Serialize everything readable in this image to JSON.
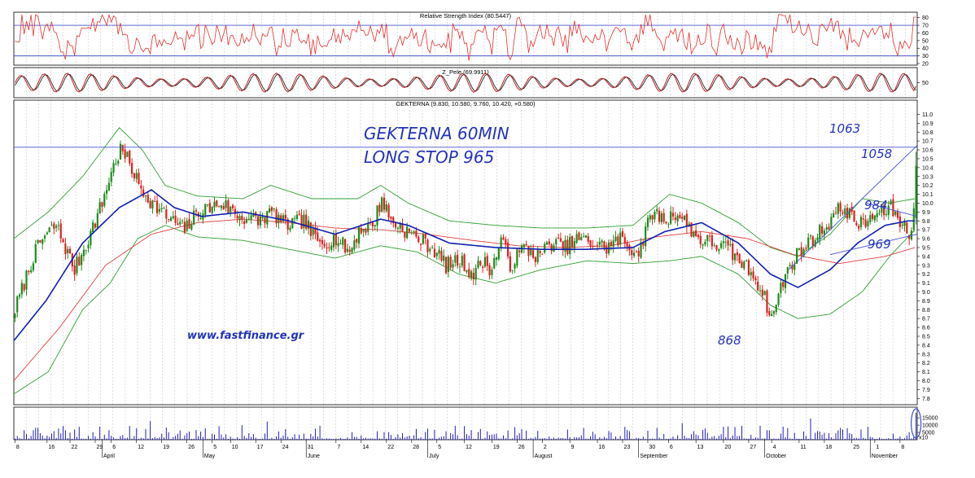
{
  "chart_data": [
    {
      "type": "line",
      "panel": "rsi",
      "title": "Relative Strength Index (80.5447)",
      "y_ticks": [
        "80",
        "70",
        "60",
        "50",
        "40",
        "30",
        "20"
      ],
      "ylim": [
        20,
        85
      ],
      "levels": [
        70,
        30
      ],
      "colors": {
        "line": "#e83030",
        "level": "#4455cc"
      }
    },
    {
      "type": "line",
      "panel": "oscillator",
      "title": "Z_Pele (69.9911)",
      "y_ticks": [
        "50"
      ],
      "ylim": [
        0,
        100
      ],
      "colors": {
        "line": "#c02020",
        "signal": "#222222"
      }
    },
    {
      "type": "candlestick",
      "panel": "price",
      "title": "GEKTERNA (9.830, 10.580, 9.760, 10.420, +0.580)",
      "y_ticks": [
        "11.0",
        "10.9",
        "10.8",
        "10.7",
        "10.6",
        "10.5",
        "10.4",
        "10.3",
        "10.2",
        "10.1",
        "10.0",
        "9.9",
        "9.8",
        "9.7",
        "9.6",
        "9.5",
        "9.4",
        "9.3",
        "9.2",
        "9.1",
        "9.0",
        "8.9",
        "8.8",
        "8.7",
        "8.6",
        "8.5",
        "8.4",
        "8.3",
        "8.2",
        "8.1",
        "8.0",
        "7.9",
        "7.8"
      ],
      "ylim": [
        7.72,
        11.05
      ],
      "series": [
        {
          "name": "",
          "role": "close",
          "points": [
            [
              0,
              8.8
            ],
            [
              8,
              9.4
            ],
            [
              12,
              9.6
            ],
            [
              18,
              9.75
            ],
            [
              22,
              9.5
            ],
            [
              26,
              9.25
            ],
            [
              32,
              9.6
            ],
            [
              38,
              10.0
            ],
            [
              42,
              10.35
            ],
            [
              46,
              10.6
            ],
            [
              50,
              10.45
            ],
            [
              54,
              10.2
            ],
            [
              60,
              10.0
            ],
            [
              66,
              9.85
            ],
            [
              74,
              9.7
            ],
            [
              80,
              9.9
            ],
            [
              90,
              10.0
            ],
            [
              98,
              9.85
            ],
            [
              106,
              9.8
            ],
            [
              112,
              9.9
            ],
            [
              118,
              9.75
            ],
            [
              126,
              9.8
            ],
            [
              132,
              9.55
            ],
            [
              140,
              9.6
            ],
            [
              146,
              9.45
            ],
            [
              150,
              9.7
            ],
            [
              156,
              9.75
            ],
            [
              160,
              10.05
            ],
            [
              164,
              9.8
            ],
            [
              170,
              9.7
            ],
            [
              176,
              9.6
            ],
            [
              182,
              9.5
            ],
            [
              188,
              9.3
            ],
            [
              194,
              9.35
            ],
            [
              200,
              9.2
            ],
            [
              204,
              9.35
            ],
            [
              208,
              9.25
            ],
            [
              212,
              9.6
            ],
            [
              216,
              9.3
            ],
            [
              222,
              9.5
            ],
            [
              228,
              9.4
            ],
            [
              234,
              9.55
            ],
            [
              240,
              9.5
            ],
            [
              246,
              9.6
            ],
            [
              252,
              9.55
            ],
            [
              258,
              9.5
            ],
            [
              264,
              9.6
            ],
            [
              268,
              9.5
            ],
            [
              272,
              9.45
            ],
            [
              278,
              9.9
            ],
            [
              284,
              9.8
            ],
            [
              288,
              9.9
            ],
            [
              292,
              9.8
            ],
            [
              298,
              9.6
            ],
            [
              304,
              9.55
            ],
            [
              310,
              9.5
            ],
            [
              316,
              9.35
            ],
            [
              322,
              9.2
            ],
            [
              326,
              9.0
            ],
            [
              330,
              8.7
            ],
            [
              334,
              9.05
            ],
            [
              338,
              9.3
            ],
            [
              342,
              9.45
            ],
            [
              348,
              9.6
            ],
            [
              354,
              9.75
            ],
            [
              358,
              9.9
            ],
            [
              362,
              9.95
            ],
            [
              366,
              9.8
            ],
            [
              370,
              9.75
            ],
            [
              374,
              9.85
            ],
            [
              378,
              9.9
            ],
            [
              382,
              9.95
            ],
            [
              386,
              9.8
            ],
            [
              390,
              9.65
            ],
            [
              392,
              9.9
            ],
            [
              393,
              10.42
            ]
          ]
        },
        {
          "name": "",
          "role": "ma_fast",
          "points": [
            [
              0,
              8.45
            ],
            [
              14,
              8.9
            ],
            [
              30,
              9.55
            ],
            [
              46,
              9.95
            ],
            [
              60,
              10.15
            ],
            [
              70,
              9.95
            ],
            [
              82,
              9.85
            ],
            [
              100,
              9.9
            ],
            [
              120,
              9.8
            ],
            [
              140,
              9.65
            ],
            [
              160,
              9.82
            ],
            [
              172,
              9.75
            ],
            [
              190,
              9.55
            ],
            [
              210,
              9.5
            ],
            [
              230,
              9.48
            ],
            [
              250,
              9.48
            ],
            [
              270,
              9.5
            ],
            [
              284,
              9.68
            ],
            [
              300,
              9.78
            ],
            [
              316,
              9.55
            ],
            [
              330,
              9.2
            ],
            [
              342,
              9.05
            ],
            [
              356,
              9.25
            ],
            [
              368,
              9.55
            ],
            [
              380,
              9.75
            ],
            [
              390,
              9.8
            ],
            [
              393,
              9.8
            ]
          ]
        },
        {
          "name": "",
          "role": "ma_slow",
          "points": [
            [
              0,
              8.0
            ],
            [
              20,
              8.6
            ],
            [
              40,
              9.3
            ],
            [
              60,
              9.65
            ],
            [
              80,
              9.78
            ],
            [
              100,
              9.82
            ],
            [
              120,
              9.78
            ],
            [
              140,
              9.72
            ],
            [
              160,
              9.7
            ],
            [
              180,
              9.65
            ],
            [
              200,
              9.58
            ],
            [
              220,
              9.52
            ],
            [
              240,
              9.5
            ],
            [
              260,
              9.52
            ],
            [
              280,
              9.62
            ],
            [
              300,
              9.68
            ],
            [
              320,
              9.6
            ],
            [
              340,
              9.42
            ],
            [
              360,
              9.32
            ],
            [
              380,
              9.4
            ],
            [
              393,
              9.5
            ]
          ]
        },
        {
          "name": "",
          "role": "bb_upper",
          "points": [
            [
              0,
              9.6
            ],
            [
              15,
              9.9
            ],
            [
              30,
              10.3
            ],
            [
              46,
              10.85
            ],
            [
              56,
              10.6
            ],
            [
              66,
              10.2
            ],
            [
              80,
              10.08
            ],
            [
              100,
              10.05
            ],
            [
              112,
              10.2
            ],
            [
              130,
              10.05
            ],
            [
              150,
              10.05
            ],
            [
              160,
              10.2
            ],
            [
              172,
              10.0
            ],
            [
              190,
              9.8
            ],
            [
              210,
              9.75
            ],
            [
              230,
              9.72
            ],
            [
              250,
              9.72
            ],
            [
              270,
              9.75
            ],
            [
              286,
              10.1
            ],
            [
              300,
              10.0
            ],
            [
              316,
              9.78
            ],
            [
              330,
              9.5
            ],
            [
              342,
              9.4
            ],
            [
              356,
              9.65
            ],
            [
              370,
              10.05
            ],
            [
              382,
              10.0
            ],
            [
              393,
              10.05
            ]
          ]
        },
        {
          "name": "",
          "role": "bb_lower",
          "points": [
            [
              0,
              7.85
            ],
            [
              15,
              8.1
            ],
            [
              30,
              8.8
            ],
            [
              42,
              9.1
            ],
            [
              54,
              9.6
            ],
            [
              66,
              9.75
            ],
            [
              80,
              9.62
            ],
            [
              100,
              9.58
            ],
            [
              120,
              9.48
            ],
            [
              140,
              9.38
            ],
            [
              160,
              9.52
            ],
            [
              176,
              9.45
            ],
            [
              194,
              9.2
            ],
            [
              210,
              9.1
            ],
            [
              230,
              9.25
            ],
            [
              250,
              9.35
            ],
            [
              270,
              9.32
            ],
            [
              286,
              9.35
            ],
            [
              300,
              9.4
            ],
            [
              316,
              9.2
            ],
            [
              330,
              8.85
            ],
            [
              342,
              8.7
            ],
            [
              356,
              8.75
            ],
            [
              370,
              9.0
            ],
            [
              382,
              9.4
            ],
            [
              393,
              9.7
            ]
          ]
        }
      ],
      "horizontal_lines": [
        10.63
      ],
      "trendlines": [
        [
          [
            338,
            9.25
          ],
          [
            394,
            10.65
          ]
        ],
        [
          [
            356,
            9.42
          ],
          [
            394,
            9.65
          ]
        ],
        [
          [
            372,
            10.0
          ],
          [
            394,
            9.85
          ]
        ]
      ],
      "colors": {
        "up": "#1c8c1c",
        "down": "#e02020",
        "ma_fast": "#1020b0",
        "ma_slow": "#e04040",
        "bands": "#30a030",
        "hline": "#4455cc",
        "trendline": "#4455cc"
      }
    },
    {
      "type": "bar",
      "panel": "volume",
      "y_ticks": [
        "15000",
        "10000",
        "5000"
      ],
      "ylim": [
        0,
        19000
      ],
      "unit_label": "x10",
      "colors": {
        "bar": "#2020c0",
        "highlight": "#3355cc"
      }
    }
  ],
  "x_axis": {
    "ticks": [
      {
        "label": "8",
        "x": 0
      },
      {
        "label": "16",
        "x": 14
      },
      {
        "label": "22",
        "x": 24
      },
      {
        "label": "29",
        "x": 35
      },
      {
        "label": "6",
        "x": 42
      },
      {
        "label": "12",
        "x": 53
      },
      {
        "label": "19",
        "x": 64
      },
      {
        "label": "26",
        "x": 75
      },
      {
        "label": "5",
        "x": 86
      },
      {
        "label": "10",
        "x": 94
      },
      {
        "label": "17",
        "x": 105
      },
      {
        "label": "24",
        "x": 116
      },
      {
        "label": "31",
        "x": 127
      },
      {
        "label": "7",
        "x": 140
      },
      {
        "label": "14",
        "x": 151
      },
      {
        "label": "22",
        "x": 162
      },
      {
        "label": "28",
        "x": 173
      },
      {
        "label": "5",
        "x": 184
      },
      {
        "label": "12",
        "x": 196
      },
      {
        "label": "19",
        "x": 208
      },
      {
        "label": "26",
        "x": 219
      },
      {
        "label": "2",
        "x": 230
      },
      {
        "label": "9",
        "x": 242
      },
      {
        "label": "16",
        "x": 254
      },
      {
        "label": "23",
        "x": 265
      },
      {
        "label": "30",
        "x": 276
      },
      {
        "label": "6",
        "x": 285
      },
      {
        "label": "13",
        "x": 297
      },
      {
        "label": "20",
        "x": 309
      },
      {
        "label": "27",
        "x": 320
      },
      {
        "label": "4",
        "x": 330
      },
      {
        "label": "11",
        "x": 342
      },
      {
        "label": "18",
        "x": 353
      },
      {
        "label": "25",
        "x": 365
      },
      {
        "label": "1",
        "x": 375
      },
      {
        "label": "8",
        "x": 386
      }
    ],
    "months": [
      {
        "label": "April",
        "x": 38
      },
      {
        "label": "May",
        "x": 82
      },
      {
        "label": "June",
        "x": 127
      },
      {
        "label": "July",
        "x": 180
      },
      {
        "label": "August",
        "x": 226
      },
      {
        "label": "September",
        "x": 272
      },
      {
        "label": "October",
        "x": 327
      },
      {
        "label": "November",
        "x": 373
      }
    ]
  },
  "annotations": {
    "title_line1": "GEKTERNA 60MIN",
    "title_line2": "LONG STOP 965",
    "website": "www.fastfinance.gr",
    "label_1063": "1063",
    "label_1058": "1058",
    "label_984": "984",
    "label_969": "969",
    "label_868": "868"
  }
}
